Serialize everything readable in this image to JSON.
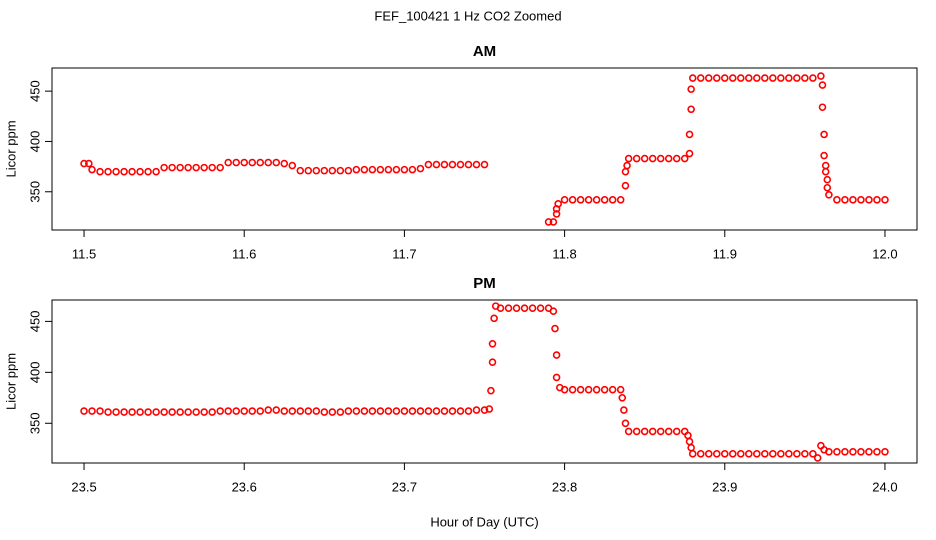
{
  "title": "FEF_100421  1 Hz CO2 Zoomed",
  "chart_data": [
    {
      "type": "scatter",
      "title": "AM",
      "ylabel": "Licor ppm",
      "color": "#ff0000",
      "xlim": [
        11.48,
        12.02
      ],
      "ylim": [
        312,
        473
      ],
      "xticks": [
        11.5,
        11.6,
        11.7,
        11.8,
        11.9,
        {
          "value": 12,
          "label": "12.0"
        }
      ],
      "yticks": [
        350,
        400,
        450
      ],
      "x": [
        11.5,
        11.503,
        11.505,
        11.51,
        11.515,
        11.52,
        11.525,
        11.53,
        11.535,
        11.54,
        11.545,
        11.55,
        11.555,
        11.56,
        11.565,
        11.57,
        11.575,
        11.58,
        11.585,
        11.59,
        11.595,
        11.6,
        11.605,
        11.61,
        11.615,
        11.62,
        11.625,
        11.63,
        11.635,
        11.64,
        11.645,
        11.65,
        11.655,
        11.66,
        11.665,
        11.67,
        11.675,
        11.68,
        11.685,
        11.69,
        11.695,
        11.7,
        11.705,
        11.71,
        11.715,
        11.72,
        11.725,
        11.73,
        11.735,
        11.74,
        11.745,
        11.75,
        11.79,
        11.793,
        11.795,
        11.795,
        11.796,
        11.8,
        11.805,
        11.81,
        11.815,
        11.82,
        11.825,
        11.83,
        11.835,
        11.838,
        11.838,
        11.839,
        11.84,
        11.845,
        11.85,
        11.855,
        11.86,
        11.865,
        11.87,
        11.875,
        11.878,
        11.878,
        11.879,
        11.879,
        11.88,
        11.885,
        11.89,
        11.895,
        11.9,
        11.905,
        11.91,
        11.915,
        11.92,
        11.925,
        11.93,
        11.935,
        11.94,
        11.945,
        11.95,
        11.955,
        11.96,
        11.961,
        11.961,
        11.962,
        11.962,
        11.963,
        11.963,
        11.964,
        11.964,
        11.965,
        11.97,
        11.975,
        11.98,
        11.985,
        11.99,
        11.995,
        12.0
      ],
      "values": [
        378,
        378,
        372,
        370,
        370,
        370,
        370,
        370,
        370,
        370,
        370,
        374,
        374,
        374,
        374,
        374,
        374,
        374,
        374,
        379,
        379,
        379,
        379,
        379,
        379,
        379,
        378,
        376,
        371,
        371,
        371,
        371,
        371,
        371,
        371,
        372,
        372,
        372,
        372,
        372,
        372,
        372,
        372,
        373,
        377,
        377,
        377,
        377,
        377,
        377,
        377,
        377,
        320,
        320,
        328,
        333,
        338,
        342,
        342,
        342,
        342,
        342,
        342,
        342,
        342,
        356,
        370,
        376,
        383,
        383,
        383,
        383,
        383,
        383,
        383,
        383,
        388,
        407,
        432,
        452,
        463,
        463,
        463,
        463,
        463,
        463,
        463,
        463,
        463,
        463,
        463,
        463,
        463,
        463,
        463,
        463,
        465,
        456,
        434,
        407,
        386,
        376,
        370,
        362,
        354,
        347,
        342,
        342,
        342,
        342,
        342,
        342,
        342
      ]
    },
    {
      "type": "scatter",
      "title": "PM",
      "ylabel": "Licor ppm",
      "xlabel": "Hour of Day (UTC)",
      "color": "#ff0000",
      "xlim": [
        23.48,
        24.02
      ],
      "ylim": [
        311,
        471
      ],
      "xticks": [
        23.5,
        23.6,
        23.7,
        23.8,
        23.9,
        {
          "value": 24,
          "label": "24.0"
        }
      ],
      "yticks": [
        350,
        400,
        450
      ],
      "x": [
        23.5,
        23.505,
        23.51,
        23.515,
        23.52,
        23.525,
        23.53,
        23.535,
        23.54,
        23.545,
        23.55,
        23.555,
        23.56,
        23.565,
        23.57,
        23.575,
        23.58,
        23.585,
        23.59,
        23.595,
        23.6,
        23.605,
        23.61,
        23.615,
        23.62,
        23.625,
        23.63,
        23.635,
        23.64,
        23.645,
        23.65,
        23.655,
        23.66,
        23.665,
        23.67,
        23.675,
        23.68,
        23.685,
        23.69,
        23.695,
        23.7,
        23.705,
        23.71,
        23.715,
        23.72,
        23.725,
        23.73,
        23.735,
        23.74,
        23.745,
        23.75,
        23.753,
        23.754,
        23.755,
        23.755,
        23.756,
        23.757,
        23.76,
        23.765,
        23.77,
        23.775,
        23.78,
        23.785,
        23.79,
        23.793,
        23.794,
        23.795,
        23.795,
        23.797,
        23.8,
        23.805,
        23.81,
        23.815,
        23.82,
        23.825,
        23.83,
        23.835,
        23.836,
        23.837,
        23.838,
        23.84,
        23.845,
        23.85,
        23.855,
        23.86,
        23.865,
        23.87,
        23.875,
        23.877,
        23.878,
        23.879,
        23.88,
        23.885,
        23.89,
        23.895,
        23.9,
        23.905,
        23.91,
        23.915,
        23.92,
        23.925,
        23.93,
        23.935,
        23.94,
        23.945,
        23.95,
        23.955,
        23.958,
        23.96,
        23.962,
        23.965,
        23.97,
        23.975,
        23.98,
        23.985,
        23.99,
        23.995,
        24.0
      ],
      "values": [
        362,
        362,
        362,
        361,
        361,
        361,
        361,
        361,
        361,
        361,
        361,
        361,
        361,
        361,
        361,
        361,
        361,
        362,
        362,
        362,
        362,
        362,
        362,
        363,
        363,
        362,
        362,
        362,
        362,
        362,
        361,
        361,
        361,
        362,
        362,
        362,
        362,
        362,
        362,
        362,
        362,
        362,
        362,
        362,
        362,
        362,
        362,
        362,
        362,
        363,
        363,
        364,
        382,
        410,
        428,
        453,
        465,
        463,
        463,
        463,
        463,
        463,
        463,
        463,
        460,
        443,
        417,
        395,
        385,
        383,
        383,
        383,
        383,
        383,
        383,
        383,
        383,
        375,
        363,
        350,
        342,
        342,
        342,
        342,
        342,
        342,
        342,
        342,
        338,
        332,
        326,
        320,
        320,
        320,
        320,
        320,
        320,
        320,
        320,
        320,
        320,
        320,
        320,
        320,
        320,
        320,
        320,
        316,
        328,
        324,
        322,
        322,
        322,
        322,
        322,
        322,
        322,
        322
      ]
    }
  ]
}
